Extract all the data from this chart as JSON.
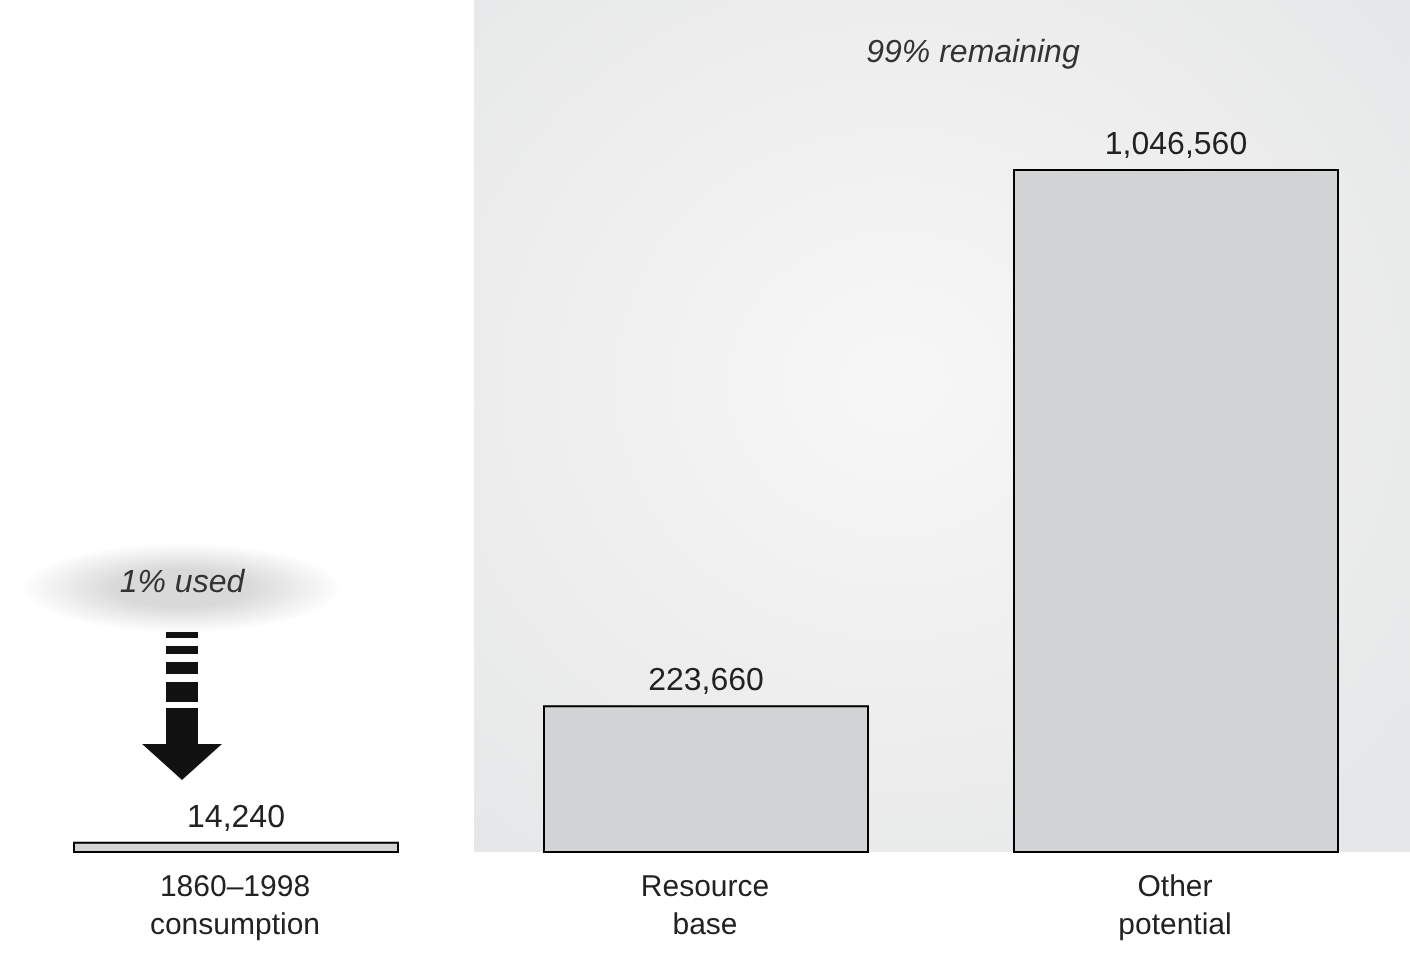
{
  "chart_data": {
    "type": "bar",
    "categories": [
      "1860–1998 consumption",
      "Resource base",
      "Other potential"
    ],
    "values": [
      14240,
      223660,
      1046560
    ],
    "value_labels": [
      "14,240",
      "223,660",
      "1,046,560"
    ],
    "color": "#d1d3d4",
    "bands": [
      {
        "axis": "x",
        "from": "Resource base",
        "to": "Other potential",
        "color": "#e6e7e8"
      }
    ],
    "annotations": [
      "1% used",
      "99% remaining"
    ]
  }
}
